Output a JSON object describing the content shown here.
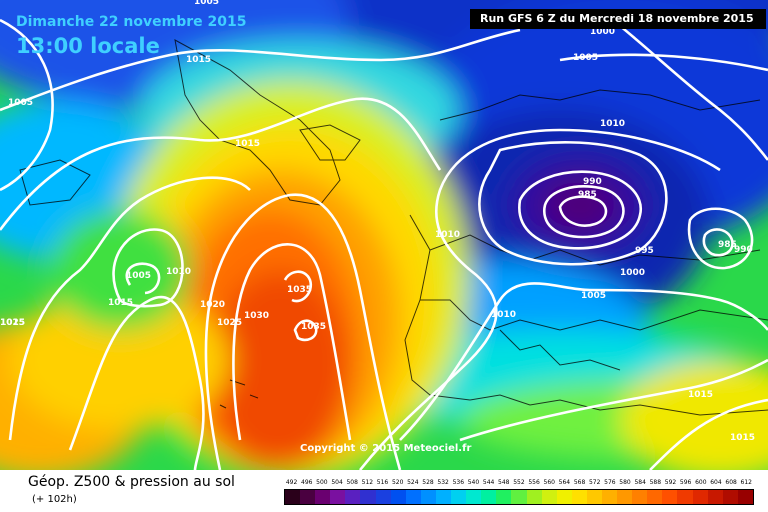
{
  "header": {
    "date_label": "Dimanche 22 novembre 2015",
    "time_label": "13:00 locale",
    "run_label": "Run GFS 6 Z du Mercredi 18 novembre 2015"
  },
  "footer": {
    "title": "Géop. Z500 & pression au sol",
    "subtitle": "(+ 102h)",
    "copyright": "Copyright © 2015 Meteociel.fr"
  },
  "isobar_labels": [
    "1005",
    "1015",
    "1005",
    "1015",
    "1000",
    "1005",
    "1010",
    "1015",
    "990",
    "985",
    "1010",
    "1005",
    "1010",
    "1015",
    "1020",
    "1025",
    "1030",
    "1035",
    "1035",
    "995",
    "1000",
    "1005",
    "1010",
    "985",
    "990",
    "1025",
    "1015",
    "1015"
  ],
  "legend": {
    "values": [
      "492",
      "496",
      "500",
      "504",
      "508",
      "512",
      "516",
      "520",
      "524",
      "528",
      "532",
      "536",
      "540",
      "544",
      "548",
      "552",
      "556",
      "560",
      "564",
      "568",
      "572",
      "576",
      "580",
      "584",
      "588",
      "592",
      "596",
      "600",
      "604",
      "608",
      "612"
    ],
    "colors": [
      "#2a001a",
      "#4a0040",
      "#6a0070",
      "#7a10a0",
      "#5a20c0",
      "#3030d0",
      "#1a40e0",
      "#0050f0",
      "#0070ff",
      "#0090ff",
      "#00b0ff",
      "#00d0f0",
      "#00e8d0",
      "#00f0a0",
      "#20f060",
      "#60f040",
      "#a0f020",
      "#d0f010",
      "#f0f000",
      "#ffe000",
      "#ffc800",
      "#ffb000",
      "#ff9800",
      "#ff8000",
      "#ff6800",
      "#ff5000",
      "#f03a00",
      "#e02800",
      "#c81800",
      "#b00c00",
      "#980000"
    ]
  }
}
